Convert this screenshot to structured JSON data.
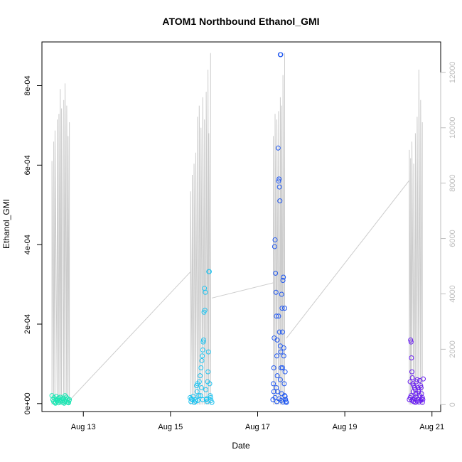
{
  "chart_data": {
    "type": "scatter",
    "title": "ATOM1 Northbound Ethanol_GMI",
    "xlabel": "Date",
    "ylabel": "Ethanol_GMI",
    "x_ticks": [
      "Aug 13",
      "Aug 15",
      "Aug 17",
      "Aug 19",
      "Aug 21"
    ],
    "x_tick_days": [
      13,
      15,
      17,
      19,
      21
    ],
    "xlim": [
      12.05,
      21.2
    ],
    "y_ticks": [
      "0e+00",
      "2e-04",
      "4e-04",
      "6e-04",
      "8e-04"
    ],
    "y_tick_values": [
      0,
      0.0002,
      0.0004,
      0.0006,
      0.0008
    ],
    "ylim": [
      -2e-05,
      0.00091
    ],
    "y2_ticks": [
      "0",
      "2000",
      "4000",
      "6000",
      "8000",
      "10000",
      "12000"
    ],
    "y2_tick_values": [
      0,
      2000,
      4000,
      6000,
      8000,
      10000,
      12000
    ],
    "y2lim": [
      -250,
      13100
    ],
    "secondary_line_color": "#cccccc",
    "bursts": [
      {
        "color": "#1ee6b4",
        "points": [
          [
            12.28,
            2e-05
          ],
          [
            12.3,
            1e-05
          ],
          [
            12.32,
            5e-06
          ],
          [
            12.33,
            1.5e-05
          ],
          [
            12.35,
            3e-06
          ],
          [
            12.37,
            1e-05
          ],
          [
            12.38,
            1.8e-05
          ],
          [
            12.4,
            6e-06
          ],
          [
            12.42,
            1.2e-05
          ],
          [
            12.43,
            2e-06
          ],
          [
            12.45,
            8e-06
          ],
          [
            12.47,
            1.6e-05
          ],
          [
            12.48,
            4e-06
          ],
          [
            12.5,
            1.1e-05
          ],
          [
            12.52,
            7e-06
          ],
          [
            12.53,
            3e-06
          ],
          [
            12.55,
            1.4e-05
          ],
          [
            12.57,
            6e-06
          ],
          [
            12.58,
            2e-05
          ],
          [
            12.6,
            9e-06
          ],
          [
            12.62,
            4e-06
          ],
          [
            12.64,
            1.2e-05
          ],
          [
            12.65,
            3e-06
          ],
          [
            12.67,
            7e-06
          ],
          [
            12.68,
            1e-05
          ],
          [
            12.36,
            1e-06
          ],
          [
            12.44,
            1.4e-05
          ],
          [
            12.56,
            1e-06
          ],
          [
            12.61,
            1.6e-05
          ],
          [
            12.66,
            2e-06
          ]
        ],
        "line": [
          [
            12.28,
            8800
          ],
          [
            12.32,
            9500
          ],
          [
            12.35,
            9900
          ],
          [
            12.4,
            10300
          ],
          [
            12.44,
            10500
          ],
          [
            12.47,
            11400
          ],
          [
            12.5,
            10700
          ],
          [
            12.55,
            11000
          ],
          [
            12.58,
            11600
          ],
          [
            12.62,
            10800
          ],
          [
            12.65,
            9700
          ],
          [
            12.68,
            10200
          ]
        ]
      },
      {
        "color": "#1ec3f0",
        "points": [
          [
            15.45,
            1.5e-05
          ],
          [
            15.47,
            5e-06
          ],
          [
            15.5,
            1e-05
          ],
          [
            15.52,
            1.8e-05
          ],
          [
            15.55,
            3e-06
          ],
          [
            15.57,
            1e-05
          ],
          [
            15.6,
            4.5e-05
          ],
          [
            15.62,
            5e-05
          ],
          [
            15.63,
            8e-06
          ],
          [
            15.65,
            2e-05
          ],
          [
            15.66,
            5.5e-05
          ],
          [
            15.68,
            7e-05
          ],
          [
            15.7,
            9e-05
          ],
          [
            15.72,
            0.000108
          ],
          [
            15.73,
            0.00012
          ],
          [
            15.74,
            0.000135
          ],
          [
            15.75,
            0.000155
          ],
          [
            15.76,
            0.00016
          ],
          [
            15.77,
            0.00023
          ],
          [
            15.78,
            0.00029
          ],
          [
            15.79,
            0.000235
          ],
          [
            15.8,
            0.00028
          ],
          [
            15.81,
            3.5e-05
          ],
          [
            15.82,
            1e-05
          ],
          [
            15.83,
            1.2e-05
          ],
          [
            15.84,
            5e-06
          ],
          [
            15.85,
            5.5e-05
          ],
          [
            15.86,
            8e-05
          ],
          [
            15.87,
            0.00013
          ],
          [
            15.88,
            0.000332
          ],
          [
            15.89,
            0.000332
          ],
          [
            15.9,
            5e-05
          ],
          [
            15.91,
            2e-05
          ],
          [
            15.92,
            1.5e-05
          ],
          [
            15.93,
            8e-06
          ],
          [
            15.95,
            3e-06
          ],
          [
            15.48,
            1.2e-05
          ],
          [
            15.58,
            6e-06
          ],
          [
            15.61,
            3e-05
          ],
          [
            15.69,
            2e-05
          ],
          [
            15.71,
            4e-05
          ],
          [
            15.74,
            1e-05
          ]
        ],
        "line": [
          [
            15.46,
            7700
          ],
          [
            15.5,
            8300
          ],
          [
            15.54,
            8700
          ],
          [
            15.58,
            9100
          ],
          [
            15.62,
            10400
          ],
          [
            15.66,
            10800
          ],
          [
            15.7,
            10000
          ],
          [
            15.74,
            11100
          ],
          [
            15.78,
            10300
          ],
          [
            15.82,
            11300
          ],
          [
            15.86,
            12100
          ],
          [
            15.88,
            9800
          ],
          [
            15.92,
            12700
          ]
        ]
      },
      {
        "color": "#1f57f0",
        "points": [
          [
            17.35,
            1e-05
          ],
          [
            17.36,
            5e-05
          ],
          [
            17.37,
            9e-05
          ],
          [
            17.38,
            0.000165
          ],
          [
            17.39,
            0.000395
          ],
          [
            17.4,
            0.000412
          ],
          [
            17.41,
            0.000328
          ],
          [
            17.42,
            0.00028
          ],
          [
            17.43,
            0.00022
          ],
          [
            17.44,
            0.00012
          ],
          [
            17.45,
            7e-05
          ],
          [
            17.46,
            3e-05
          ],
          [
            17.47,
            0.000643
          ],
          [
            17.48,
            0.00056
          ],
          [
            17.49,
            0.000565
          ],
          [
            17.5,
            0.000545
          ],
          [
            17.51,
            0.00051
          ],
          [
            17.52,
            0.000145
          ],
          [
            17.53,
            0.00013
          ],
          [
            17.54,
            9e-05
          ],
          [
            17.55,
            0.000275
          ],
          [
            17.56,
            0.00024
          ],
          [
            17.57,
            0.00018
          ],
          [
            17.58,
            0.00031
          ],
          [
            17.59,
            0.000318
          ],
          [
            17.6,
            0.00012
          ],
          [
            17.61,
            5e-05
          ],
          [
            17.62,
            2e-05
          ],
          [
            17.63,
            8e-05
          ],
          [
            17.64,
            1e-05
          ],
          [
            17.65,
            5e-06
          ],
          [
            17.66,
            3e-06
          ],
          [
            17.52,
            0.000878
          ],
          [
            17.53,
            0.000878
          ],
          [
            17.37,
            3e-05
          ],
          [
            17.4,
            1.5e-05
          ],
          [
            17.43,
            4e-05
          ],
          [
            17.45,
            0.00016
          ],
          [
            17.48,
            0.00022
          ],
          [
            17.5,
            0.00018
          ],
          [
            17.52,
            6e-05
          ],
          [
            17.55,
            2.5e-05
          ],
          [
            17.57,
            9e-05
          ],
          [
            17.6,
            0.00014
          ],
          [
            17.62,
            0.00024
          ],
          [
            17.44,
            5e-06
          ],
          [
            17.49,
            1.2e-05
          ],
          [
            17.54,
            8e-06
          ],
          [
            17.58,
            4e-06
          ],
          [
            17.63,
            1.8e-05
          ]
        ],
        "line": [
          [
            17.36,
            9700
          ],
          [
            17.4,
            10500
          ],
          [
            17.44,
            10300
          ],
          [
            17.48,
            10600
          ],
          [
            17.52,
            11100
          ],
          [
            17.55,
            10800
          ],
          [
            17.58,
            11900
          ],
          [
            17.62,
            12700
          ]
        ]
      },
      {
        "color": "#6a1ff0",
        "points": [
          [
            20.48,
            1e-05
          ],
          [
            20.5,
            5.5e-05
          ],
          [
            20.51,
            0.00016
          ],
          [
            20.52,
            0.000155
          ],
          [
            20.53,
            0.000115
          ],
          [
            20.54,
            8e-05
          ],
          [
            20.55,
            6.5e-05
          ],
          [
            20.56,
            5e-05
          ],
          [
            20.58,
            4.5e-05
          ],
          [
            20.6,
            4e-05
          ],
          [
            20.62,
            3.5e-05
          ],
          [
            20.64,
            5.5e-05
          ],
          [
            20.66,
            6e-05
          ],
          [
            20.68,
            4e-05
          ],
          [
            20.7,
            3.5e-05
          ],
          [
            20.72,
            5.8e-05
          ],
          [
            20.74,
            4.5e-05
          ],
          [
            20.76,
            2.5e-05
          ],
          [
            20.78,
            1.5e-05
          ],
          [
            20.8,
            6.2e-05
          ],
          [
            20.5,
            1.5e-05
          ],
          [
            20.52,
            2e-05
          ],
          [
            20.54,
            8e-06
          ],
          [
            20.56,
            1e-05
          ],
          [
            20.58,
            5e-06
          ],
          [
            20.6,
            1.2e-05
          ],
          [
            20.62,
            3e-06
          ],
          [
            20.64,
            1.8e-05
          ],
          [
            20.66,
            6e-06
          ],
          [
            20.68,
            1e-05
          ],
          [
            20.7,
            4e-06
          ],
          [
            20.72,
            2e-05
          ],
          [
            20.74,
            8e-06
          ],
          [
            20.76,
            1.2e-05
          ],
          [
            20.78,
            3e-06
          ],
          [
            20.79,
            1e-05
          ],
          [
            20.57,
            3e-05
          ],
          [
            20.63,
            2.5e-05
          ],
          [
            20.69,
            3e-05
          ],
          [
            20.75,
            4e-05
          ]
        ],
        "line": [
          [
            20.48,
            9200
          ],
          [
            20.51,
            8900
          ],
          [
            20.54,
            9500
          ],
          [
            20.58,
            8700
          ],
          [
            20.62,
            9800
          ],
          [
            20.66,
            10400
          ],
          [
            20.7,
            12100
          ],
          [
            20.74,
            11000
          ],
          [
            20.78,
            10200
          ]
        ]
      }
    ],
    "connectors": [
      [
        12.68,
        150,
        15.46,
        4800
      ],
      [
        15.95,
        3850,
        17.36,
        4400
      ],
      [
        17.66,
        2400,
        20.48,
        8100
      ]
    ]
  }
}
